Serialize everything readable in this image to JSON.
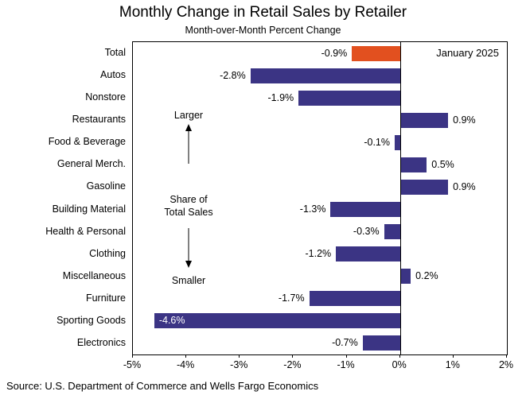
{
  "source": "Source: U.S. Department of Commerce and Wells Fargo Economics",
  "chart_data": {
    "type": "bar",
    "orientation": "horizontal",
    "title": "Monthly Change in Retail Sales by Retailer",
    "subtitle": "Month-over-Month Percent Change",
    "categories": [
      "Total",
      "Autos",
      "Nonstore",
      "Restaurants",
      "Food & Beverage",
      "General Merch.",
      "Gasoline",
      "Building Material",
      "Health & Personal",
      "Clothing",
      "Miscellaneous",
      "Furniture",
      "Sporting Goods",
      "Electronics"
    ],
    "values": [
      -0.9,
      -2.8,
      -1.9,
      0.9,
      -0.1,
      0.5,
      0.9,
      -1.3,
      -0.3,
      -1.2,
      0.2,
      -1.7,
      -4.6,
      -0.7
    ],
    "value_labels": [
      "-0.9%",
      "-2.8%",
      "-1.9%",
      "0.9%",
      "-0.1%",
      "0.5%",
      "0.9%",
      "-1.3%",
      "-0.3%",
      "-1.2%",
      "0.2%",
      "-1.7%",
      "-4.6%",
      "-0.7%"
    ],
    "xlim": [
      -5,
      2
    ],
    "x_ticks": [
      "-5%",
      "-4%",
      "-3%",
      "-2%",
      "-1%",
      "0%",
      "1%",
      "2%"
    ],
    "bar_color": "#3b3484",
    "highlight_index": 0,
    "highlight_color": "#e2501f",
    "inside_label_index": 12,
    "grid": false,
    "legend": "none",
    "annotations": {
      "date": "January 2025",
      "larger": "Larger",
      "share_line1": "Share of",
      "share_line2": "Total Sales",
      "smaller": "Smaller"
    }
  }
}
